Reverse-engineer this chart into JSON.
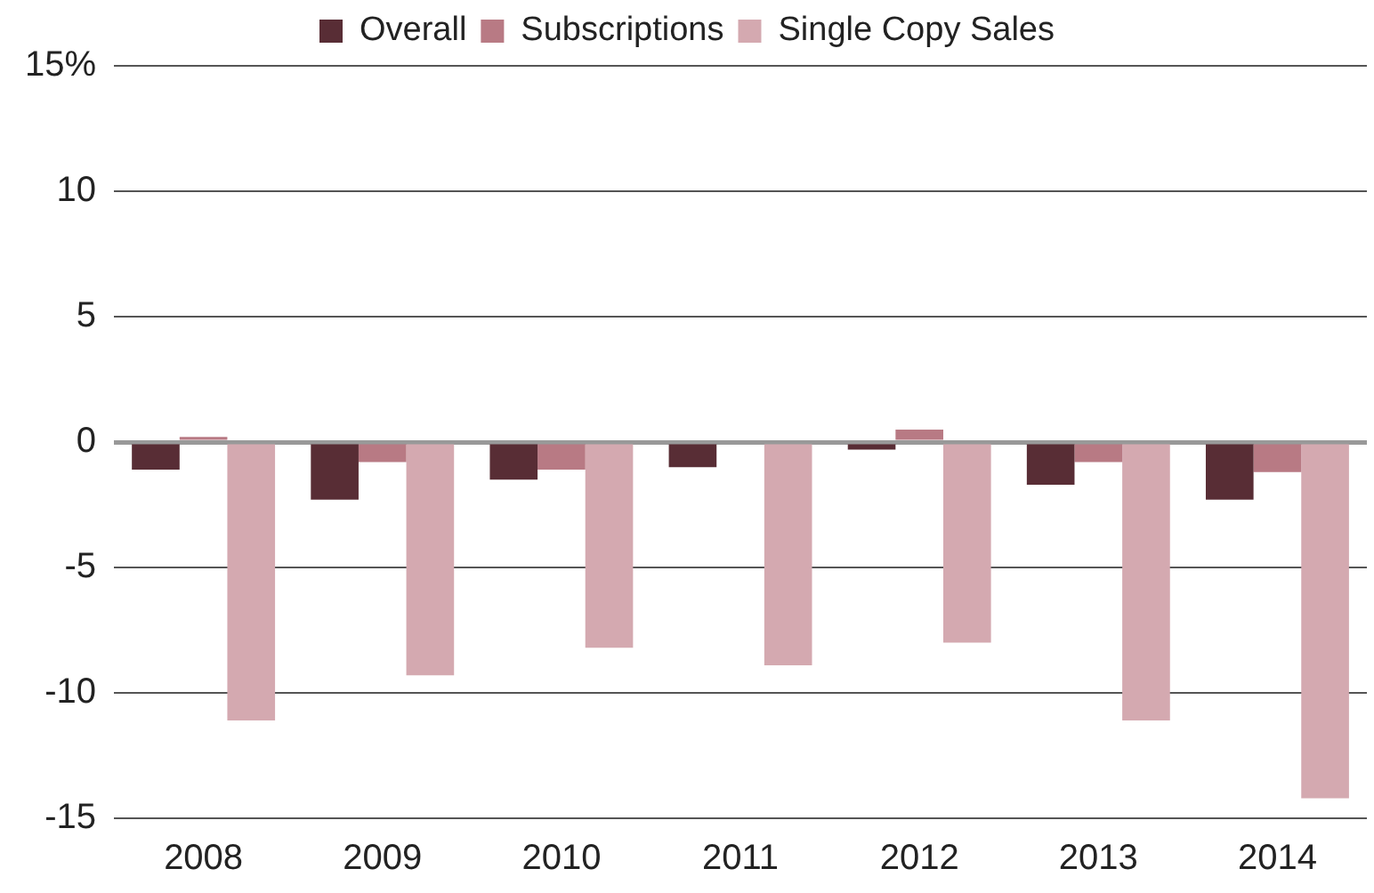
{
  "chart_data": {
    "type": "bar",
    "categories": [
      "2008",
      "2009",
      "2010",
      "2011",
      "2012",
      "2013",
      "2014"
    ],
    "series": [
      {
        "name": "Overall",
        "color": "#582d35",
        "values": [
          -1.1,
          -2.3,
          -1.5,
          -1.0,
          -0.3,
          -1.7,
          -2.3
        ]
      },
      {
        "name": "Subscriptions",
        "color": "#b87a84",
        "values": [
          0.2,
          -0.8,
          -1.1,
          0,
          0.5,
          -0.8,
          -1.2
        ]
      },
      {
        "name": "Single Copy Sales",
        "color": "#d4a9b0",
        "values": [
          -11.1,
          -9.3,
          -8.2,
          -8.9,
          -8.0,
          -11.1,
          -14.2
        ]
      }
    ],
    "ylim": [
      -15,
      15
    ],
    "yticks": [
      -15,
      -10,
      -5,
      0,
      5,
      10,
      {
        "value": 15,
        "label": "15%"
      }
    ],
    "grid": "y",
    "legend": "top"
  }
}
